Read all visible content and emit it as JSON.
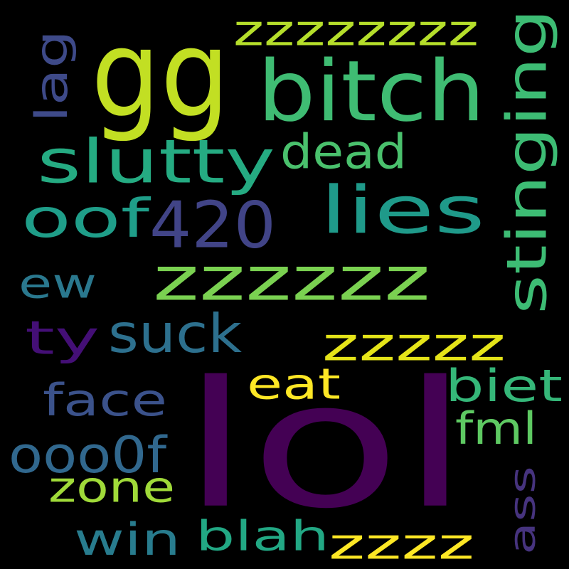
{
  "words": [
    {
      "text": "lol",
      "color": "#440154",
      "rotated": false
    },
    {
      "text": "gg",
      "color": "#c2df23",
      "rotated": false
    },
    {
      "text": "bitch",
      "color": "#3fbc73",
      "rotated": false
    },
    {
      "text": "zzzzzzzz",
      "color": "#b5de2b",
      "rotated": false
    },
    {
      "text": "slutty",
      "color": "#25ab82",
      "rotated": false
    },
    {
      "text": "dead",
      "color": "#4ac16d",
      "rotated": false
    },
    {
      "text": "lies",
      "color": "#1f9a8a",
      "rotated": false
    },
    {
      "text": "oof",
      "color": "#1f9e89",
      "rotated": false
    },
    {
      "text": "420",
      "color": "#414487",
      "rotated": false
    },
    {
      "text": "zzzzzz",
      "color": "#7ad151",
      "rotated": false
    },
    {
      "text": "ew",
      "color": "#2a788e",
      "rotated": false
    },
    {
      "text": "ty",
      "color": "#440f76",
      "rotated": false
    },
    {
      "text": "suck",
      "color": "#2d708e",
      "rotated": false
    },
    {
      "text": "zzzzz",
      "color": "#e5e419",
      "rotated": false
    },
    {
      "text": "eat",
      "color": "#fde725",
      "rotated": false
    },
    {
      "text": "face",
      "color": "#3b528b",
      "rotated": false
    },
    {
      "text": "biet",
      "color": "#35b779",
      "rotated": false
    },
    {
      "text": "fml",
      "color": "#5ec962",
      "rotated": false
    },
    {
      "text": "ooo0f",
      "color": "#31688e",
      "rotated": false
    },
    {
      "text": "zone",
      "color": "#a0da39",
      "rotated": false
    },
    {
      "text": "win",
      "color": "#287c8e",
      "rotated": false
    },
    {
      "text": "blah",
      "color": "#22a884",
      "rotated": false
    },
    {
      "text": "zzzz",
      "color": "#fde725",
      "rotated": false
    },
    {
      "text": "lag",
      "color": "#3e4a89",
      "rotated": true
    },
    {
      "text": "stinging",
      "color": "#3dbc74",
      "rotated": true
    },
    {
      "text": "ass",
      "color": "#46337e",
      "rotated": true
    }
  ]
}
